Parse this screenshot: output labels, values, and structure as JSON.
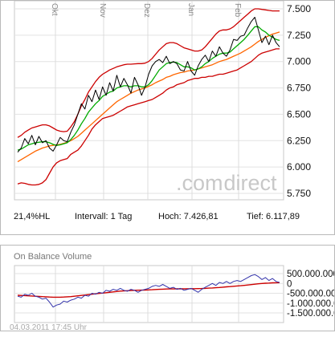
{
  "chart_data": [
    {
      "type": "line",
      "x_ticks": [
        "Okt",
        "Nov",
        "Dez",
        "Jan",
        "Feb"
      ],
      "y_ticks": [
        "7.500",
        "7.250",
        "7.000",
        "6.750",
        "6.500",
        "6.250",
        "6.000",
        "5.750"
      ],
      "ylim": [
        5750,
        7500
      ],
      "grid": true,
      "watermark": {
        "part1": ".com",
        "part2": "direct"
      },
      "series": [
        {
          "color": "#000000",
          "values": [
            6140,
            6180,
            6270,
            6220,
            6300,
            6210,
            6290,
            6230,
            6250,
            6180,
            6150,
            6210,
            6280,
            6250,
            6240,
            6330,
            6400,
            6500,
            6600,
            6550,
            6680,
            6620,
            6730,
            6640,
            6760,
            6680,
            6800,
            6720,
            6870,
            6760,
            6840,
            6780,
            6700,
            6850,
            6780,
            6680,
            6760,
            6880,
            6960,
            7000,
            7020,
            6990,
            7050,
            6980,
            7000,
            6980,
            6920,
            6910,
            7000,
            6910,
            6870,
            6960,
            7020,
            7060,
            7000,
            7100,
            7050,
            7140,
            7080,
            7050,
            7110,
            7210,
            7200,
            7240,
            7250,
            7320,
            7380,
            7420,
            7300,
            7180,
            7240,
            7160,
            7250,
            7180,
            7140
          ]
        },
        {
          "color": "#00aa00",
          "values": [
            6160,
            6170,
            6190,
            6210,
            6220,
            6230,
            6235,
            6240,
            6240,
            6230,
            6215,
            6205,
            6210,
            6220,
            6230,
            6260,
            6300,
            6350,
            6410,
            6460,
            6520,
            6560,
            6600,
            6630,
            6670,
            6690,
            6710,
            6720,
            6750,
            6760,
            6770,
            6770,
            6760,
            6770,
            6770,
            6760,
            6760,
            6780,
            6820,
            6870,
            6920,
            6950,
            6980,
            6990,
            6995,
            6990,
            6970,
            6950,
            6950,
            6940,
            6920,
            6930,
            6950,
            6980,
            7000,
            7030,
            7050,
            7070,
            7080,
            7080,
            7090,
            7120,
            7150,
            7180,
            7210,
            7250,
            7290,
            7330,
            7330,
            7300,
            7280,
            7250,
            7230,
            7210,
            7200
          ]
        },
        {
          "color": "#ff6600",
          "values": [
            6050,
            6070,
            6090,
            6110,
            6130,
            6150,
            6165,
            6180,
            6190,
            6200,
            6205,
            6210,
            6215,
            6225,
            6235,
            6250,
            6270,
            6290,
            6320,
            6350,
            6380,
            6410,
            6440,
            6470,
            6500,
            6530,
            6560,
            6590,
            6620,
            6640,
            6660,
            6680,
            6700,
            6715,
            6730,
            6740,
            6750,
            6765,
            6780,
            6800,
            6815,
            6830,
            6850,
            6860,
            6875,
            6885,
            6895,
            6900,
            6910,
            6915,
            6920,
            6930,
            6940,
            6950,
            6960,
            6970,
            6985,
            7000,
            7010,
            7020,
            7035,
            7050,
            7065,
            7080,
            7100,
            7120,
            7140,
            7165,
            7190,
            7210,
            7230,
            7245,
            7260,
            7270,
            7280
          ]
        },
        {
          "color": "#cc0000",
          "values": [
            6280,
            6300,
            6330,
            6350,
            6370,
            6380,
            6390,
            6400,
            6400,
            6390,
            6370,
            6350,
            6340,
            6335,
            6340,
            6380,
            6430,
            6500,
            6580,
            6640,
            6710,
            6760,
            6810,
            6850,
            6880,
            6900,
            6920,
            6935,
            6950,
            6960,
            6970,
            6975,
            6975,
            6978,
            6980,
            6980,
            6985,
            7000,
            7030,
            7070,
            7110,
            7140,
            7170,
            7180,
            7180,
            7170,
            7150,
            7130,
            7120,
            7110,
            7100,
            7100,
            7110,
            7140,
            7180,
            7220,
            7260,
            7290,
            7300,
            7300,
            7310,
            7330,
            7360,
            7390,
            7420,
            7450,
            7480,
            7500,
            7500,
            7495,
            7490,
            7485,
            7480,
            7480,
            7480
          ]
        },
        {
          "color": "#cc0000",
          "values": [
            5840,
            5850,
            5845,
            5835,
            5830,
            5830,
            5835,
            5850,
            5880,
            5940,
            6000,
            6040,
            6060,
            6070,
            6080,
            6120,
            6140,
            6160,
            6200,
            6250,
            6300,
            6360,
            6400,
            6430,
            6460,
            6470,
            6480,
            6490,
            6510,
            6530,
            6550,
            6570,
            6580,
            6590,
            6600,
            6610,
            6620,
            6630,
            6640,
            6660,
            6680,
            6700,
            6730,
            6750,
            6760,
            6780,
            6790,
            6800,
            6820,
            6830,
            6840,
            6840,
            6850,
            6850,
            6860,
            6860,
            6870,
            6880,
            6880,
            6890,
            6900,
            6910,
            6920,
            6940,
            6960,
            6980,
            7000,
            7030,
            7060,
            7080,
            7090,
            7100,
            7110,
            7120,
            7120
          ]
        }
      ]
    },
    {
      "type": "line",
      "title": "On Balance Volume",
      "y_ticks": [
        "500.000.000",
        "0",
        "-500.000.000",
        "-1.000.000.000",
        "-1.500.000.000"
      ],
      "ylim": [
        -1500000000,
        500000000
      ],
      "grid": true,
      "series": [
        {
          "color": "#3333aa",
          "values": [
            -650000000,
            -700000000,
            -550000000,
            -600000000,
            -500000000,
            -650000000,
            -700000000,
            -800000000,
            -750000000,
            -950000000,
            -1200000000,
            -1100000000,
            -1050000000,
            -900000000,
            -950000000,
            -850000000,
            -800000000,
            -700000000,
            -750000000,
            -600000000,
            -650000000,
            -500000000,
            -550000000,
            -450000000,
            -500000000,
            -350000000,
            -400000000,
            -300000000,
            -350000000,
            -250000000,
            -350000000,
            -400000000,
            -300000000,
            -350000000,
            -450000000,
            -350000000,
            -300000000,
            -250000000,
            -150000000,
            -100000000,
            -150000000,
            -50000000,
            -150000000,
            -250000000,
            -200000000,
            -300000000,
            -250000000,
            -350000000,
            -300000000,
            -250000000,
            -350000000,
            -450000000,
            -300000000,
            -200000000,
            -100000000,
            0,
            -100000000,
            50000000,
            0,
            100000000,
            0,
            100000000,
            150000000,
            100000000,
            200000000,
            300000000,
            400000000,
            450000000,
            350000000,
            200000000,
            300000000,
            150000000,
            250000000,
            100000000,
            50000000
          ]
        },
        {
          "color": "#cc0000",
          "values": [
            -600000000,
            -610000000,
            -620000000,
            -630000000,
            -640000000,
            -650000000,
            -660000000,
            -670000000,
            -680000000,
            -690000000,
            -700000000,
            -700000000,
            -700000000,
            -690000000,
            -680000000,
            -670000000,
            -650000000,
            -630000000,
            -610000000,
            -590000000,
            -570000000,
            -550000000,
            -530000000,
            -510000000,
            -490000000,
            -470000000,
            -450000000,
            -430000000,
            -410000000,
            -390000000,
            -380000000,
            -370000000,
            -360000000,
            -350000000,
            -345000000,
            -340000000,
            -335000000,
            -330000000,
            -320000000,
            -310000000,
            -300000000,
            -290000000,
            -285000000,
            -280000000,
            -278000000,
            -276000000,
            -274000000,
            -272000000,
            -270000000,
            -268000000,
            -266000000,
            -264000000,
            -260000000,
            -250000000,
            -240000000,
            -230000000,
            -220000000,
            -205000000,
            -190000000,
            -175000000,
            -160000000,
            -145000000,
            -130000000,
            -115000000,
            -100000000,
            -80000000,
            -60000000,
            -40000000,
            -20000000,
            0,
            10000000,
            20000000,
            30000000,
            35000000,
            40000000
          ]
        }
      ]
    }
  ],
  "info": {
    "change": "21,4%HL",
    "interval": "Intervall: 1 Tag",
    "high": "Hoch:  7.426,81",
    "low": "Tief:  6.117,89"
  },
  "timestamp": "04.03.2011 17:45 Uhr"
}
